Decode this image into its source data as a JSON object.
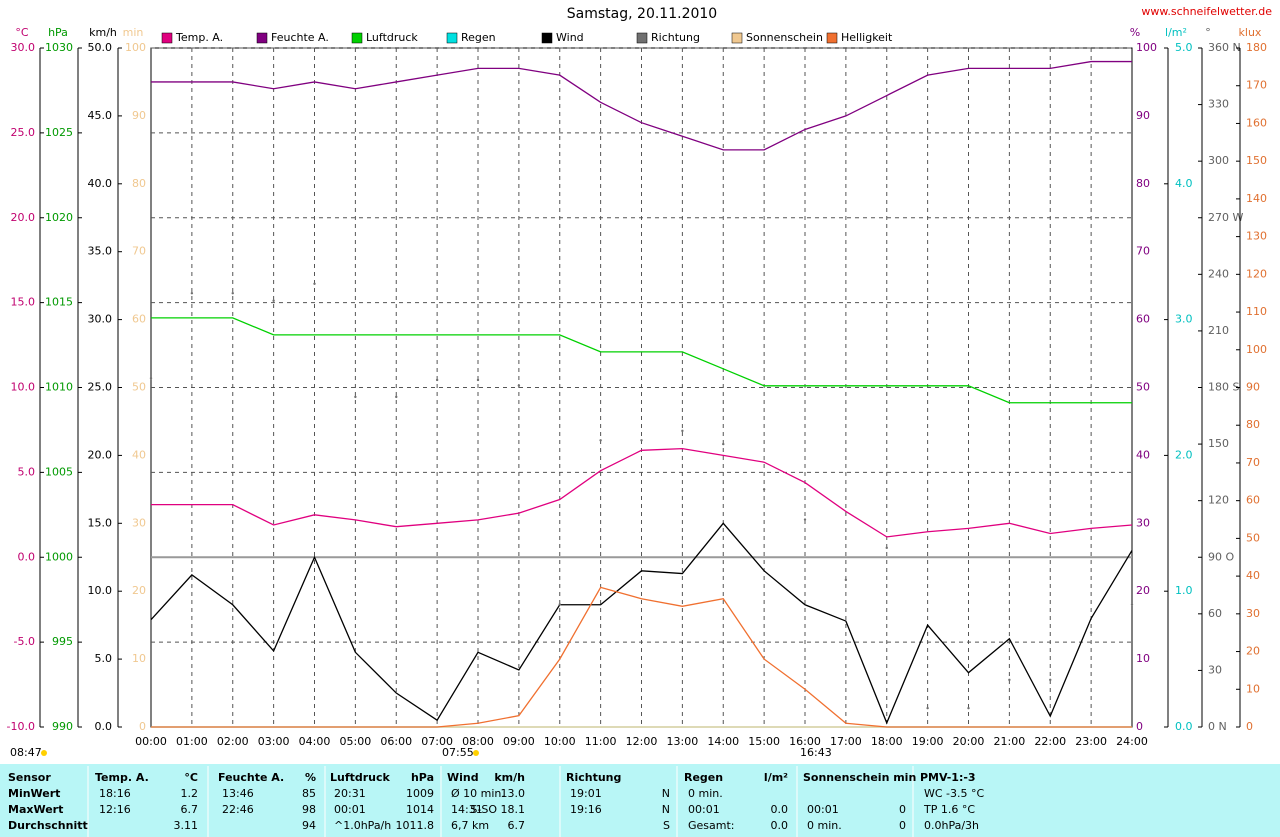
{
  "chart_data": {
    "type": "line",
    "title": "Samstag, 20.11.2010",
    "site": "www.schneifelwetter.de",
    "x": [
      0,
      1,
      2,
      3,
      4,
      5,
      6,
      7,
      8,
      9,
      10,
      11,
      12,
      13,
      14,
      15,
      16,
      17,
      18,
      19,
      20,
      21,
      22,
      23,
      24
    ],
    "xlim": [
      0,
      24
    ],
    "xticks": [
      {
        "value": 0,
        "label": "00:00"
      },
      {
        "value": 1,
        "label": "01:00"
      },
      {
        "value": 2,
        "label": "02:00"
      },
      {
        "value": 3,
        "label": "03:00"
      },
      {
        "value": 4,
        "label": "04:00"
      },
      {
        "value": 5,
        "label": "05:00"
      },
      {
        "value": 6,
        "label": "06:00"
      },
      {
        "value": 7,
        "label": "07:00"
      },
      {
        "value": 8,
        "label": "08:00"
      },
      {
        "value": 9,
        "label": "09:00"
      },
      {
        "value": 10,
        "label": "10:00"
      },
      {
        "value": 11,
        "label": "11:00"
      },
      {
        "value": 12,
        "label": "12:00"
      },
      {
        "value": 13,
        "label": "13:00"
      },
      {
        "value": 14,
        "label": "14:00"
      },
      {
        "value": 15,
        "label": "15:00"
      },
      {
        "value": 16,
        "label": "16:00"
      },
      {
        "value": 17,
        "label": "17:00"
      },
      {
        "value": 18,
        "label": "18:00"
      },
      {
        "value": 19,
        "label": "19:00"
      },
      {
        "value": 20,
        "label": "20:00"
      },
      {
        "value": 21,
        "label": "21:00"
      },
      {
        "value": 22,
        "label": "22:00"
      },
      {
        "value": 23,
        "label": "23:00"
      },
      {
        "value": 24,
        "label": "24:00"
      }
    ],
    "grid": true,
    "axes": [
      {
        "unit": "°C",
        "color": "#c0006f",
        "lim": [
          -10,
          30
        ],
        "ticks": [
          {
            "value": 30,
            "label": "30.0"
          },
          {
            "value": 25,
            "label": "25.0"
          },
          {
            "value": 20,
            "label": "20.0"
          },
          {
            "value": 15,
            "label": "15.0"
          },
          {
            "value": 10,
            "label": "10.0"
          },
          {
            "value": 5,
            "label": "5.0"
          },
          {
            "value": 0,
            "label": "0.0"
          },
          {
            "value": -5,
            "label": "-5.0"
          },
          {
            "value": -10,
            "label": "-10.0"
          }
        ]
      },
      {
        "unit": "hPa",
        "color": "#009900",
        "lim": [
          990,
          1030
        ],
        "ticks": [
          1030,
          1025,
          1020,
          1015,
          1010,
          1005,
          1000,
          995,
          990
        ]
      },
      {
        "unit": "km/h",
        "color": "#000000",
        "lim": [
          0,
          50
        ],
        "ticks": [
          {
            "value": 50,
            "label": "50.0"
          },
          {
            "value": 45,
            "label": "45.0"
          },
          {
            "value": 40,
            "label": "40.0"
          },
          {
            "value": 35,
            "label": "35.0"
          },
          {
            "value": 30,
            "label": "30.0"
          },
          {
            "value": 25,
            "label": "25.0"
          },
          {
            "value": 20,
            "label": "20.0"
          },
          {
            "value": 15,
            "label": "15.0"
          },
          {
            "value": 10,
            "label": "10.0"
          },
          {
            "value": 5,
            "label": "5.0"
          },
          {
            "value": 0,
            "label": "0.0"
          }
        ]
      },
      {
        "unit": "min",
        "color": "#f0c890",
        "lim": [
          0,
          100
        ],
        "ticks": [
          100,
          90,
          80,
          70,
          60,
          50,
          40,
          30,
          20,
          10,
          0
        ]
      },
      {
        "unit": "%",
        "color": "#800080",
        "lim": [
          0,
          100
        ],
        "ticks": [
          100,
          90,
          80,
          70,
          60,
          50,
          40,
          30,
          20,
          10,
          0
        ]
      },
      {
        "unit": "l/m²",
        "color": "#00c0c0",
        "lim": [
          0,
          5
        ],
        "ticks": [
          {
            "value": 5,
            "label": "5.0"
          },
          {
            "value": 4,
            "label": "4.0"
          },
          {
            "value": 3,
            "label": "3.0"
          },
          {
            "value": 2,
            "label": "2.0"
          },
          {
            "value": 1,
            "label": "1.0"
          },
          {
            "value": 0,
            "label": "0.0"
          }
        ]
      },
      {
        "unit": "°",
        "color": "#606060",
        "lim": [
          0,
          360
        ],
        "ticks": [
          {
            "value": 360,
            "label": "360 N"
          },
          330,
          300,
          {
            "value": 270,
            "label": "270 W"
          },
          240,
          210,
          {
            "value": 180,
            "label": "180 S"
          },
          150,
          120,
          {
            "value": 90,
            "label": "90 O"
          },
          60,
          30,
          {
            "value": 0,
            "label": "0 N"
          }
        ]
      },
      {
        "unit": "klux",
        "color": "#e07030",
        "lim": [
          0,
          180
        ],
        "ticks": [
          180,
          170,
          160,
          150,
          140,
          130,
          120,
          110,
          100,
          90,
          80,
          70,
          60,
          50,
          40,
          30,
          20,
          10,
          0
        ]
      }
    ],
    "series": [
      {
        "name": "Temp. A.",
        "color": "#e0007f",
        "axis": 0,
        "style": "line",
        "values": [
          3.1,
          3.1,
          3.1,
          1.9,
          2.5,
          2.2,
          1.8,
          2.0,
          2.2,
          2.6,
          3.4,
          5.1,
          6.3,
          6.4,
          6.0,
          5.6,
          4.4,
          2.7,
          1.2,
          1.5,
          1.7,
          2.0,
          1.4,
          1.7,
          1.9
        ]
      },
      {
        "name": "Feuchte A.",
        "color": "#800080",
        "axis": 4,
        "style": "line",
        "values": [
          95,
          95,
          95,
          94,
          95,
          94,
          95,
          96,
          97,
          97,
          96,
          92,
          89,
          87,
          85,
          85,
          88,
          90,
          93,
          96,
          97,
          97,
          97,
          98,
          98
        ]
      },
      {
        "name": "Luftdruck",
        "color": "#00d000",
        "axis": 1,
        "style": "line",
        "values": [
          1014.1,
          1014.1,
          1014.1,
          1013.1,
          1013.1,
          1013.1,
          1013.1,
          1013.1,
          1013.1,
          1013.1,
          1013.1,
          1012.1,
          1012.1,
          1012.1,
          1011.1,
          1010.1,
          1010.1,
          1010.1,
          1010.1,
          1010.1,
          1010.1,
          1009.1,
          1009.1,
          1009.1,
          1009.1
        ]
      },
      {
        "name": "Regen",
        "color": "#00e0e0",
        "axis": 5,
        "style": "line",
        "values": [
          0,
          0,
          0,
          0,
          0,
          0,
          0,
          0,
          0,
          0,
          0,
          0,
          0,
          0,
          0,
          0,
          0,
          0,
          0,
          0,
          0,
          0,
          0,
          0,
          0
        ]
      },
      {
        "name": "Wind",
        "color": "#000000",
        "axis": 2,
        "style": "line",
        "values": [
          7.9,
          11.2,
          9.0,
          5.6,
          12.5,
          5.5,
          2.5,
          0.5,
          5.5,
          4.2,
          9.0,
          9.0,
          11.5,
          11.3,
          15.0,
          11.5,
          9.0,
          7.8,
          0.3,
          7.5,
          4.0,
          6.5,
          0.8,
          8.0,
          13.0
        ]
      },
      {
        "name": "Richtung",
        "color": "#707070",
        "axis": 6,
        "style": "dots",
        "values": [
          185,
          230,
          230,
          226,
          235,
          175,
          175,
          184,
          184,
          181,
          65,
          152,
          152,
          157,
          150,
          126,
          110,
          78,
          95,
          10,
          10,
          25,
          25,
          50,
          65
        ]
      },
      {
        "name": "Sonnenschein",
        "color": "#f0c890",
        "axis": 3,
        "style": "line",
        "values": [
          0,
          0,
          0,
          0,
          0,
          0,
          0,
          0,
          0,
          0,
          0,
          0,
          0,
          0,
          0,
          0,
          0,
          0,
          0,
          0,
          0,
          0,
          0,
          0,
          0
        ]
      },
      {
        "name": "Helligkeit",
        "color": "#f07030",
        "axis": 7,
        "style": "line",
        "values": [
          0,
          0,
          0,
          0,
          0,
          0,
          0,
          0,
          1,
          3,
          18,
          37,
          34,
          32,
          34,
          18,
          10,
          1,
          0,
          0,
          0,
          0,
          0,
          0,
          0
        ]
      }
    ],
    "annotations": [
      "08:47",
      "07:55",
      "16:43"
    ]
  },
  "table": {
    "header": [
      [
        "Sensor",
        null
      ],
      [
        "Temp. A.",
        "°C"
      ],
      [
        "Feuchte A.",
        "%"
      ],
      [
        "Luftdruck",
        "hPa"
      ],
      [
        "Wind",
        "km/h"
      ],
      [
        "Richtung",
        null
      ],
      [
        "Regen",
        "l/m²"
      ],
      [
        "Sonnenschein min",
        null
      ],
      [
        "PMV-1:-3",
        null
      ]
    ],
    "rows": [
      {
        "label": "MinWert",
        "cells": [
          [
            "18:16",
            "1.2"
          ],
          [
            "13:46",
            "85"
          ],
          [
            "20:31",
            "1009"
          ],
          [
            "Ø 10 min.",
            "13.0"
          ],
          [
            "19:01",
            "N"
          ],
          [
            "0 min.",
            null
          ],
          [
            null,
            null
          ],
          [
            "WC -3.5 °C",
            null
          ]
        ]
      },
      {
        "label": "MaxWert",
        "cells": [
          [
            "12:16",
            "6.7"
          ],
          [
            "22:46",
            "98"
          ],
          [
            "00:01",
            "1014"
          ],
          [
            "14:31",
            "S-SO 18.1"
          ],
          [
            "19:16",
            "N"
          ],
          [
            "00:01",
            "0.0"
          ],
          [
            "00:01",
            "0"
          ],
          [
            "TP 1.6 °C",
            null
          ]
        ]
      },
      {
        "label": "Durchschnitt",
        "cells": [
          [
            null,
            "3.11"
          ],
          [
            null,
            "94"
          ],
          [
            "^1.0hPa/h",
            "1011.8"
          ],
          [
            "6,7 km",
            "6.7"
          ],
          [
            null,
            "S"
          ],
          [
            "Gesamt:",
            "0.0"
          ],
          [
            "0 min.",
            "0"
          ],
          [
            "0.0hPa/3h",
            null
          ]
        ]
      }
    ]
  }
}
